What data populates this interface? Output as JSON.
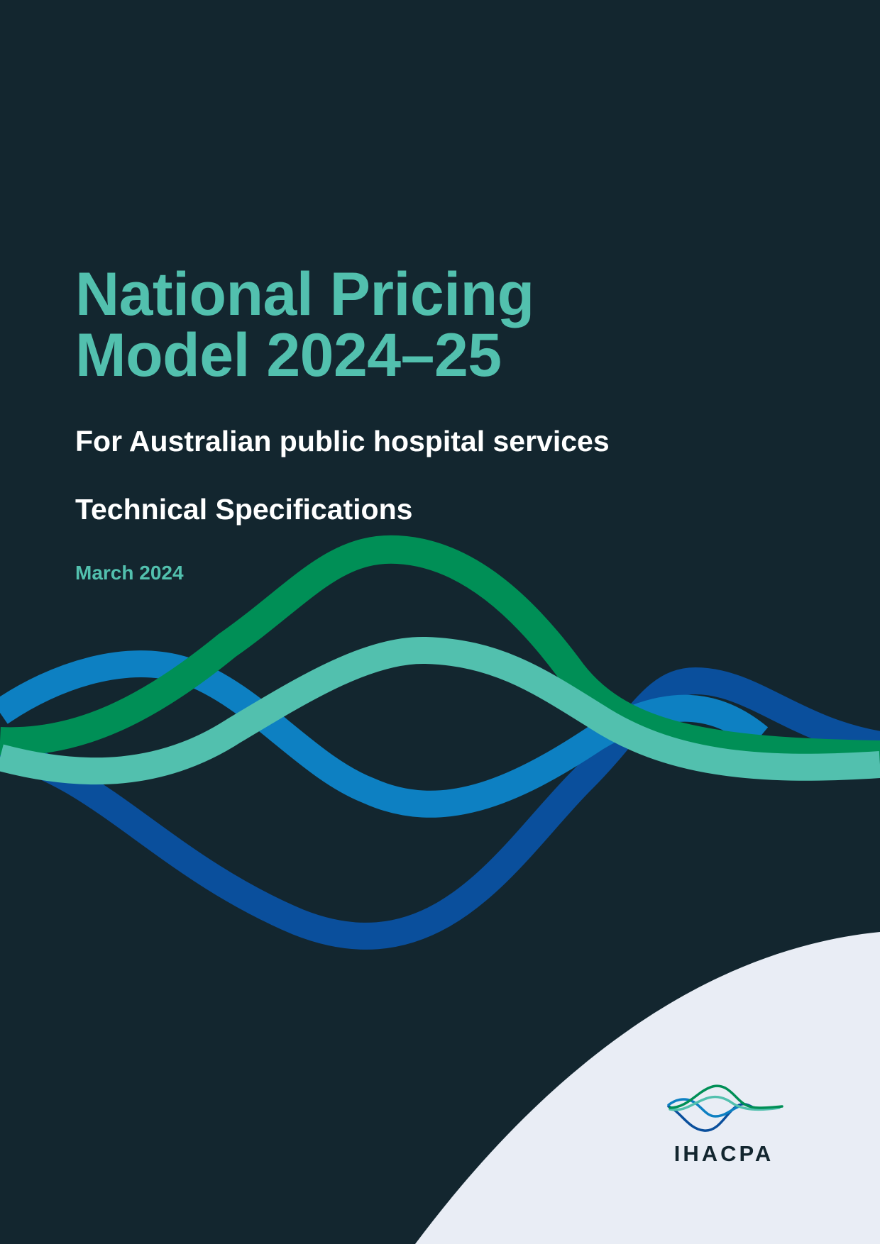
{
  "cover": {
    "title_line1": "National Pricing",
    "title_line2": "Model 2024–25",
    "subtitle": "For Australian public hospital services",
    "document_type": "Technical Specifications",
    "date": "March 2024"
  },
  "logo": {
    "wordmark": "IHACPA",
    "icon": "wave-lines-logo-icon"
  },
  "colors": {
    "background": "#13262f",
    "accent_teal": "#52c0ae",
    "text_white": "#ffffff",
    "wave_green": "#008f56",
    "wave_teal": "#52c0ae",
    "wave_light_blue": "#0d80c2",
    "wave_dark_blue": "#0a4f9c",
    "corner_panel": "#e9edf5",
    "logo_text": "#13262f"
  }
}
